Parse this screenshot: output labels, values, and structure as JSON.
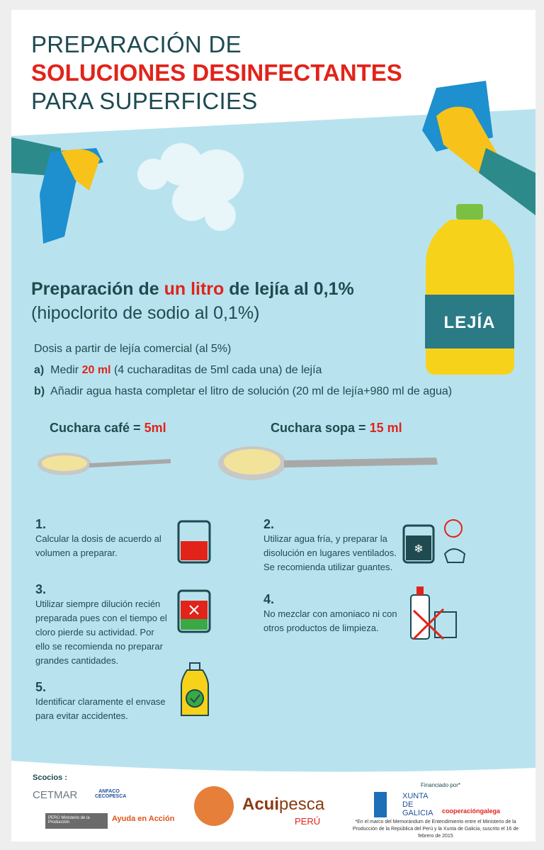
{
  "title": {
    "line1": "PREPARACIÓN DE",
    "line2": "SOLUCIONES DESINFECTANTES",
    "line3": "PARA SUPERFICIES"
  },
  "heading": {
    "pre": "Preparación de ",
    "highlight": "un litro",
    "post": " de lejía al 0,1%",
    "sub": "(hipoclorito de sodio al 0,1%)"
  },
  "bottle_label": "LEJÍA",
  "dosage": {
    "intro": "Dosis a partir de lejía comercial (al 5%)",
    "a": {
      "letter": "a)",
      "pre": "Medir ",
      "highlight": "20 ml",
      "post": " (4 cucharaditas de 5ml cada una) de lejía"
    },
    "b": {
      "letter": "b)",
      "text": "Añadir agua hasta completar el litro de solución (20 ml de lejía+980 ml de agua)"
    }
  },
  "spoons": [
    {
      "label": "Cuchara café = ",
      "value": "5ml"
    },
    {
      "label": "Cuchara sopa = ",
      "value": "15 ml"
    }
  ],
  "steps": [
    {
      "num": "1.",
      "text": "Calcular la dosis de acuerdo al volumen a preparar.",
      "icon": "beaker-icon"
    },
    {
      "num": "2.",
      "text": "Utilizar agua fría, y preparar la disolución en lugares ventilados. Se recomienda utilizar guantes.",
      "icon": "cold-water-fan-gloves-icon"
    },
    {
      "num": "3.",
      "text": "Utilizar siempre dilución recién preparada pues con el tiempo el cloro pierde su actividad. Por ello se recomienda no preparar grandes cantidades.",
      "icon": "beaker-check-icon"
    },
    {
      "num": "4.",
      "text": "No mezclar con amoniaco ni con otros productos de limpieza.",
      "icon": "no-mix-icon"
    },
    {
      "num": "5.",
      "text": "Identificar claramente el envase para evitar accidentes.",
      "icon": "labeled-bottle-icon"
    }
  ],
  "footer": {
    "partners_label": "Scocios :",
    "partners": [
      "CETMAR",
      "ANFACO CECOPESCA",
      "PERÚ Ministerio de la Producción",
      "Ayuda en Acción"
    ],
    "main_logo": {
      "a": "Acui",
      "b": "pesca",
      "c": "PERÚ"
    },
    "funded_label": "Financiado por*",
    "funders": [
      "XUNTA DE GALICIA",
      "cooperacióngalega"
    ],
    "note": "*En el marco del Memorándum de Entendimiento entre el Ministerio de la Producción de la República del Perú y la Xunta de Galicia, suscrito el 16 de febrero de 2015"
  },
  "colors": {
    "accent": "#e2231a",
    "text": "#1e4a50",
    "background": "#b8e3ee"
  }
}
